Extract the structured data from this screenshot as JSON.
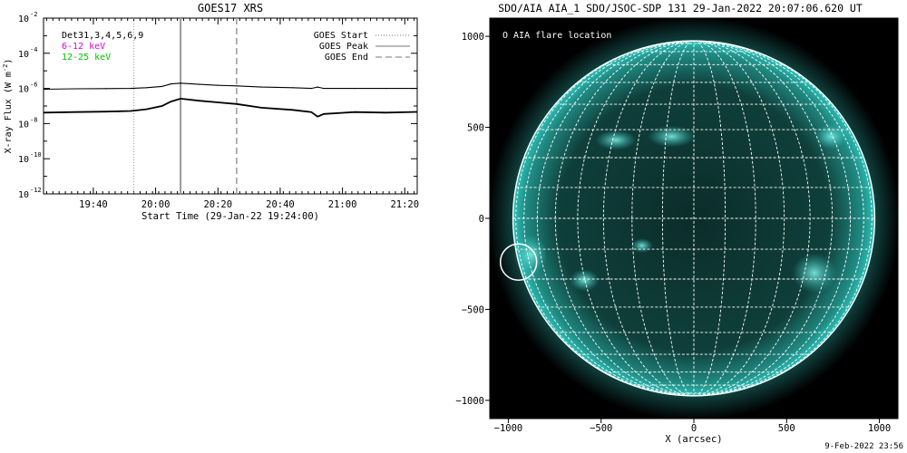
{
  "goes_panel": {
    "title": "GOES17 XRS",
    "legend_left": [
      {
        "label": "Det31,3,4,5,6,9",
        "color": "#000000"
      },
      {
        "label": "6-12 keV",
        "color": "#e000e0"
      },
      {
        "label": "12-25 keV",
        "color": "#00c000"
      }
    ],
    "legend_right": [
      {
        "label": "GOES Start",
        "style": "dotted"
      },
      {
        "label": "GOES Peak",
        "style": "solid"
      },
      {
        "label": "GOES End",
        "style": "dashed"
      }
    ]
  },
  "aia_panel": {
    "title": "SDO/AIA AIA_1 SDO/JSOC-SDP 131 29-Jan-2022 20:07:06.620 UT",
    "legend": "O AIA flare location"
  },
  "footer": "9-Feb-2022 23:56",
  "colors": {
    "aia_cyan": "#2ec0b8",
    "grid_gray": "#9a9a9a",
    "peak_gray": "#9a9a9a"
  },
  "chart_data": [
    {
      "type": "line",
      "title": "GOES17 XRS",
      "xlabel": "Start Time (29-Jan-22 19:24:00)",
      "ylabel": "X-ray Flux (W m^-2)",
      "xlim_minutes": [
        0,
        120
      ],
      "x_ticks": [
        {
          "label": "19:40",
          "minutes": 16
        },
        {
          "label": "20:00",
          "minutes": 36
        },
        {
          "label": "20:20",
          "minutes": 56
        },
        {
          "label": "20:40",
          "minutes": 76
        },
        {
          "label": "21:00",
          "minutes": 96
        },
        {
          "label": "21:20",
          "minutes": 116
        }
      ],
      "y_scale": "log",
      "ylim": [
        1e-12,
        0.01
      ],
      "y_ticks": [
        {
          "label": "10",
          "exp": "-2",
          "value": 0.01
        },
        {
          "label": "10",
          "exp": "-4",
          "value": 0.0001
        },
        {
          "label": "10",
          "exp": "-6",
          "value": 1e-06
        },
        {
          "label": "10",
          "exp": "-8",
          "value": 1e-08
        },
        {
          "label": "10",
          "exp": "-10",
          "value": 1e-10
        },
        {
          "label": "10",
          "exp": "-12",
          "value": 1e-12
        }
      ],
      "markers": {
        "goes_start_minutes": 29,
        "goes_peak_minutes": 44,
        "goes_end_minutes": 62
      },
      "series": [
        {
          "x": [
            0,
            10,
            20,
            28,
            33,
            38,
            41,
            44,
            50,
            56,
            62,
            70,
            80,
            86,
            88,
            90,
            100,
            110,
            120
          ],
          "y": [
            9e-07,
            9.5e-07,
            9.8e-07,
            1e-06,
            1.1e-06,
            1.3e-06,
            1.8e-06,
            2e-06,
            1.7e-06,
            1.5e-06,
            1.4e-06,
            1.2e-06,
            1.1e-06,
            1e-06,
            1.2e-06,
            1e-06,
            1e-06,
            1e-06,
            1e-06
          ]
        },
        {
          "x": [
            0,
            10,
            20,
            28,
            33,
            38,
            41,
            44,
            50,
            56,
            62,
            70,
            80,
            86,
            88,
            90,
            100,
            110,
            120
          ],
          "y": [
            4.2e-08,
            4.5e-08,
            4.8e-08,
            5.2e-08,
            6.5e-08,
            1e-07,
            1.8e-07,
            2.6e-07,
            2e-07,
            1.6e-07,
            1.3e-07,
            8e-08,
            6e-08,
            4.5e-08,
            2.5e-08,
            3.5e-08,
            4.5e-08,
            4.2e-08,
            4.6e-08
          ]
        }
      ]
    },
    {
      "type": "scatter",
      "title": "SDO/AIA AIA_1 SDO/JSOC-SDP 131 29-Jan-2022 20:07:06.620 UT",
      "xlabel": "X (arcsec)",
      "ylabel": "",
      "xlim": [
        -1100,
        1100
      ],
      "ylim": [
        -1100,
        1100
      ],
      "x_ticks": [
        -1000,
        -500,
        0,
        500,
        1000
      ],
      "y_ticks": [
        1000,
        500,
        0,
        -500,
        -1000
      ],
      "tick_labels_x": [
        "−1000",
        "−500",
        "0",
        "500",
        "1000"
      ],
      "tick_labels_y": [
        "1000",
        "500",
        "0",
        "−500",
        "−1000"
      ],
      "solar_radius_arcsec": 975,
      "flare_location": {
        "x": -945,
        "y": -240
      }
    }
  ]
}
